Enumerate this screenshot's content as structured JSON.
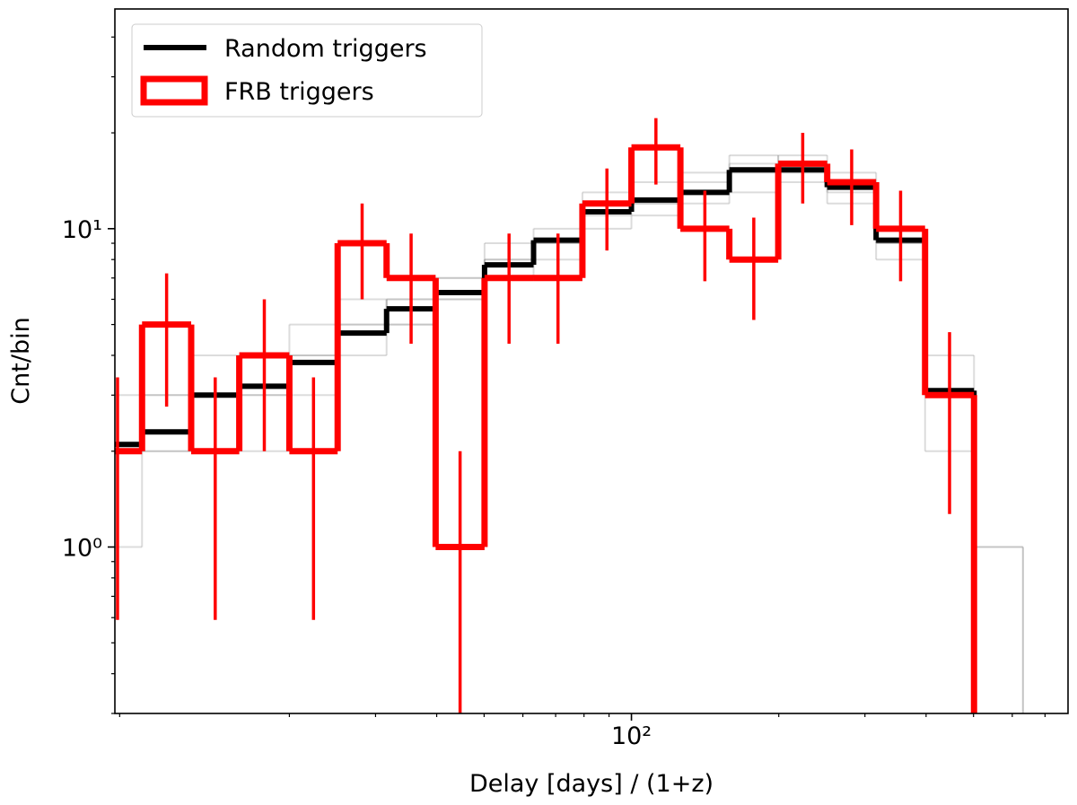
{
  "chart_data": {
    "type": "histogram",
    "xlabel": "Delay [days] / (1+z)",
    "ylabel": "Cnt/bin",
    "xscale": "log",
    "yscale": "log",
    "xlim": [
      8.8,
      780
    ],
    "ylim": [
      0.3,
      49
    ],
    "xticks": [
      {
        "value": 100,
        "label": "10²"
      }
    ],
    "xminorticks": [
      9,
      20,
      30,
      40,
      50,
      60,
      70,
      80,
      90,
      200,
      300,
      400,
      500,
      600,
      700
    ],
    "yticks": [
      {
        "value": 1,
        "label": "10⁰"
      },
      {
        "value": 10,
        "label": "10¹"
      }
    ],
    "yminorticks": [
      0.3,
      0.4,
      0.5,
      0.6,
      0.7,
      0.8,
      0.9,
      2,
      3,
      4,
      5,
      6,
      7,
      8,
      9,
      20,
      30,
      40
    ],
    "legend": "upper left",
    "bins": [
      7.94,
      10,
      12.6,
      15.8,
      20,
      25.1,
      31.6,
      39.8,
      50.1,
      63.1,
      79.4,
      100,
      125.9,
      158.5,
      199.5,
      251.2,
      316.2,
      398.1,
      501.2,
      631
    ],
    "series": [
      {
        "name": "Random triggers",
        "color": "#000000",
        "values": [
          2.1,
          2.3,
          3.0,
          3.2,
          3.8,
          4.7,
          5.6,
          6.3,
          7.7,
          9.2,
          11.3,
          12.3,
          13,
          15.3,
          15.3,
          13.5,
          9.2,
          3.1,
          0
        ]
      },
      {
        "name": "FRB triggers",
        "color": "#ff0000",
        "values": [
          2,
          5,
          2,
          4,
          2,
          9,
          7,
          1,
          7,
          7,
          12,
          18,
          10,
          8,
          16,
          14,
          10,
          3,
          0
        ],
        "errors": [
          1.41,
          2.24,
          1.41,
          2,
          1.41,
          3,
          2.65,
          1,
          2.65,
          2.65,
          3.46,
          4.24,
          3.16,
          2.83,
          4,
          3.74,
          3.16,
          1.73,
          0
        ]
      }
    ],
    "realization_color": "#9a9a9a",
    "realizations": [
      {
        "values": [
          2,
          3,
          3,
          4,
          4,
          5,
          6,
          6,
          8,
          9,
          11,
          12,
          13,
          15,
          16,
          13,
          9,
          3,
          1
        ]
      },
      {
        "values": [
          1,
          2,
          2,
          3,
          3,
          4,
          5,
          7,
          7,
          10,
          12,
          14,
          12,
          16,
          14,
          15,
          10,
          4,
          0
        ]
      },
      {
        "values": [
          3,
          2,
          4,
          3,
          5,
          5,
          6,
          6,
          9,
          8,
          10,
          11,
          14,
          13,
          17,
          12,
          8,
          2,
          1
        ]
      },
      {
        "values": [
          2,
          3,
          3,
          2,
          4,
          6,
          5,
          7,
          8,
          9,
          13,
          12,
          15,
          17,
          15,
          14,
          9,
          3,
          0
        ]
      }
    ]
  }
}
